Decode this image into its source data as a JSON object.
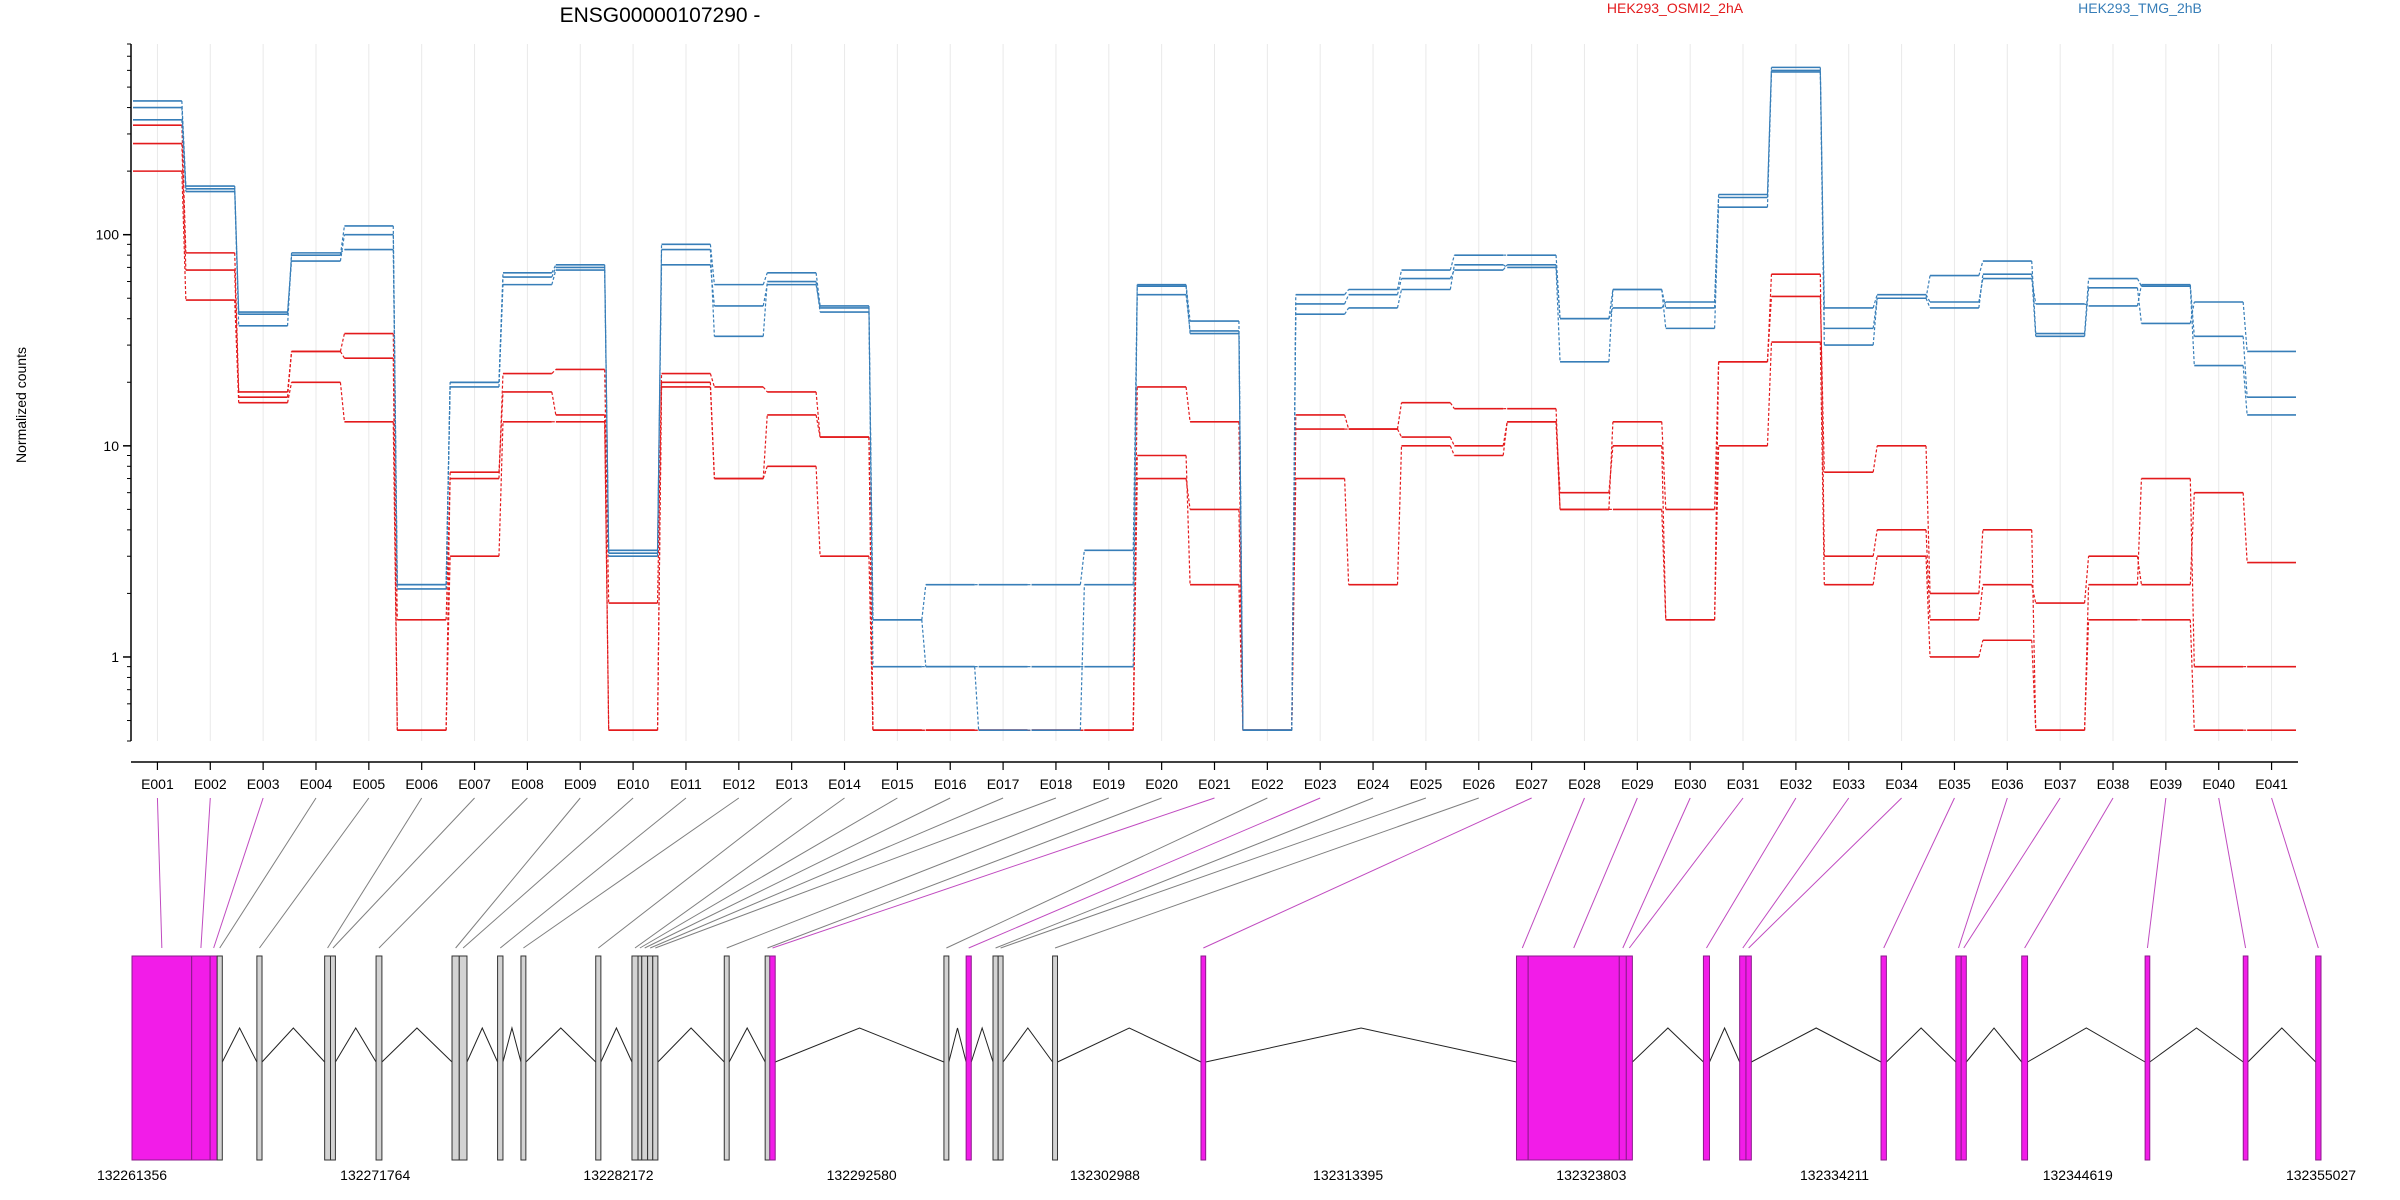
{
  "chart_data": {
    "type": "line",
    "title": "ENSG00000107290 -",
    "ylabel": "Normalized counts",
    "ylim": [
      0.4,
      800
    ],
    "yscale": "log",
    "yticks": [
      {
        "value": 1,
        "label": "1"
      },
      {
        "value": 10,
        "label": "10"
      },
      {
        "value": 100,
        "label": "100"
      }
    ],
    "categories": [
      "E001",
      "E002",
      "E003",
      "E004",
      "E005",
      "E006",
      "E007",
      "E008",
      "E009",
      "E010",
      "E011",
      "E012",
      "E013",
      "E014",
      "E015",
      "E016",
      "E017",
      "E018",
      "E019",
      "E020",
      "E021",
      "E022",
      "E023",
      "E024",
      "E025",
      "E026",
      "E027",
      "E028",
      "E029",
      "E030",
      "E031",
      "E032",
      "E033",
      "E034",
      "E035",
      "E036",
      "E037",
      "E038",
      "E039",
      "E040",
      "E041"
    ],
    "legend": [
      {
        "label": "HEK293_OSMI2_2hA",
        "color": "#e31a1c"
      },
      {
        "label": "HEK293_TMG_2hB",
        "color": "#377eb8"
      }
    ],
    "series": [
      {
        "group": 0,
        "color": "#e31a1c",
        "values": [
          270,
          68,
          17,
          28,
          26,
          0.45,
          7.5,
          18,
          14,
          0.45,
          20,
          7,
          14,
          11,
          0.45,
          0.45,
          0.45,
          0.45,
          0.45,
          7,
          5,
          0.45,
          12,
          12,
          11,
          10,
          13,
          6,
          10,
          1.5,
          25,
          51,
          7.5,
          10,
          2,
          4,
          0.45,
          2.2,
          7,
          0.9,
          0.9
        ]
      },
      {
        "group": 0,
        "color": "#e31a1c",
        "values": [
          330,
          82,
          18,
          28,
          34,
          1.5,
          7,
          22,
          23,
          1.8,
          22,
          19,
          18,
          11,
          0.45,
          0.45,
          0.45,
          0.45,
          0.45,
          19,
          13,
          0.45,
          14,
          12,
          16,
          15,
          15,
          5,
          13,
          5,
          25,
          65,
          3,
          4,
          1.5,
          2.2,
          1.8,
          3,
          2.2,
          6,
          2.8
        ]
      },
      {
        "group": 0,
        "color": "#e31a1c",
        "values": [
          200,
          49,
          16,
          20,
          13,
          0.45,
          3,
          13,
          13,
          0.45,
          19,
          7,
          8,
          3,
          0.45,
          0.45,
          0.45,
          0.45,
          0.45,
          9,
          2.2,
          0.45,
          7,
          2.2,
          10,
          9,
          13,
          5,
          5,
          1.5,
          10,
          31,
          2.2,
          3,
          1,
          1.2,
          0.45,
          1.5,
          1.5,
          0.45,
          0.45
        ]
      },
      {
        "group": 1,
        "color": "#377eb8",
        "values": [
          400,
          165,
          43,
          75,
          100,
          2.2,
          20,
          63,
          70,
          3.2,
          72,
          46,
          58,
          45,
          1.5,
          2.2,
          2.2,
          2.2,
          3.2,
          52,
          35,
          0.45,
          47,
          52,
          62,
          68,
          72,
          40,
          55,
          45,
          150,
          600,
          45,
          52,
          48,
          62,
          47,
          46,
          58,
          33,
          17
        ]
      },
      {
        "group": 1,
        "color": "#377eb8",
        "values": [
          430,
          170,
          42,
          80,
          110,
          2.2,
          19,
          58,
          68,
          3,
          85,
          33,
          60,
          43,
          1.5,
          0.9,
          0.9,
          0.9,
          0.9,
          58,
          39,
          0.45,
          52,
          55,
          68,
          80,
          80,
          40,
          45,
          48,
          155,
          620,
          36,
          50,
          45,
          65,
          33,
          56,
          38,
          48,
          28
        ]
      },
      {
        "group": 1,
        "color": "#377eb8",
        "values": [
          350,
          160,
          37,
          82,
          85,
          2.1,
          20,
          66,
          72,
          3.1,
          90,
          58,
          66,
          46,
          0.9,
          0.9,
          0.45,
          0.45,
          2.2,
          57,
          34,
          0.45,
          42,
          45,
          55,
          72,
          70,
          25,
          55,
          36,
          135,
          590,
          30,
          50,
          64,
          75,
          34,
          62,
          57,
          24,
          14
        ]
      }
    ]
  },
  "gene_model": {
    "genomic_ticks": [
      "132261356",
      "132271764",
      "132282172",
      "132292580",
      "132302988",
      "132313395",
      "132323803",
      "132334211",
      "132344619",
      "132355027"
    ],
    "range": [
      132261356,
      132355027
    ],
    "colors": {
      "exon_fill": "#f21ce8",
      "exon_edge": "#8b1a8b",
      "plain_exon_fill": "#d3d3d3",
      "plain_link": "#7f7f7f",
      "hit_link": "#c04bc0"
    },
    "exon_bins": [
      {
        "id": "E001",
        "start": 132261356,
        "end": 132263910,
        "sig": true
      },
      {
        "id": "E002",
        "start": 132263910,
        "end": 132264700,
        "sig": true
      },
      {
        "id": "E003",
        "start": 132264700,
        "end": 132265000,
        "sig": true
      },
      {
        "id": "E004",
        "start": 132265000,
        "end": 132265220,
        "sig": false
      },
      {
        "id": "E005",
        "start": 132266700,
        "end": 132266920,
        "sig": false
      },
      {
        "id": "E006",
        "start": 132269600,
        "end": 132269850,
        "sig": false
      },
      {
        "id": "E007",
        "start": 132269850,
        "end": 132270060,
        "sig": false
      },
      {
        "id": "E008",
        "start": 132271800,
        "end": 132272050,
        "sig": false
      },
      {
        "id": "E009",
        "start": 132275050,
        "end": 132275360,
        "sig": false
      },
      {
        "id": "E010",
        "start": 132275360,
        "end": 132275690,
        "sig": false
      },
      {
        "id": "E011",
        "start": 132277000,
        "end": 132277230,
        "sig": false
      },
      {
        "id": "E012",
        "start": 132278000,
        "end": 132278210,
        "sig": false
      },
      {
        "id": "E013",
        "start": 132281200,
        "end": 132281420,
        "sig": false
      },
      {
        "id": "E014",
        "start": 132282750,
        "end": 132283010,
        "sig": false
      },
      {
        "id": "E015",
        "start": 132283010,
        "end": 132283170,
        "sig": false
      },
      {
        "id": "E016",
        "start": 132283170,
        "end": 132283420,
        "sig": false
      },
      {
        "id": "E017",
        "start": 132283420,
        "end": 132283640,
        "sig": false
      },
      {
        "id": "E018",
        "start": 132283640,
        "end": 132283860,
        "sig": false
      },
      {
        "id": "E019",
        "start": 132286700,
        "end": 132286910,
        "sig": false
      },
      {
        "id": "E020",
        "start": 132288450,
        "end": 132288650,
        "sig": false
      },
      {
        "id": "E021",
        "start": 132288650,
        "end": 132288880,
        "sig": true
      },
      {
        "id": "E022",
        "start": 132296100,
        "end": 132296310,
        "sig": false
      },
      {
        "id": "E023",
        "start": 132297050,
        "end": 132297270,
        "sig": true
      },
      {
        "id": "E024",
        "start": 132298200,
        "end": 132298420,
        "sig": false
      },
      {
        "id": "E025",
        "start": 132298420,
        "end": 132298630,
        "sig": false
      },
      {
        "id": "E026",
        "start": 132300750,
        "end": 132300960,
        "sig": false
      },
      {
        "id": "E027",
        "start": 132307100,
        "end": 132307300,
        "sig": true
      },
      {
        "id": "E028",
        "start": 132320600,
        "end": 132321100,
        "sig": true
      },
      {
        "id": "E029",
        "start": 132321100,
        "end": 132325000,
        "sig": true
      },
      {
        "id": "E030",
        "start": 132325000,
        "end": 132325300,
        "sig": true
      },
      {
        "id": "E031",
        "start": 132325300,
        "end": 132325560,
        "sig": true
      },
      {
        "id": "E032",
        "start": 132328600,
        "end": 132328860,
        "sig": true
      },
      {
        "id": "E033",
        "start": 132330150,
        "end": 132330420,
        "sig": true
      },
      {
        "id": "E034",
        "start": 132330420,
        "end": 132330650,
        "sig": true
      },
      {
        "id": "E035",
        "start": 132336200,
        "end": 132336430,
        "sig": true
      },
      {
        "id": "E036",
        "start": 132339400,
        "end": 132339630,
        "sig": true
      },
      {
        "id": "E037",
        "start": 132339630,
        "end": 132339850,
        "sig": true
      },
      {
        "id": "E038",
        "start": 132342220,
        "end": 132342470,
        "sig": true
      },
      {
        "id": "E039",
        "start": 132347500,
        "end": 132347700,
        "sig": true
      },
      {
        "id": "E040",
        "start": 132351700,
        "end": 132351900,
        "sig": true
      },
      {
        "id": "E041",
        "start": 132354800,
        "end": 132355027,
        "sig": true
      }
    ],
    "transcript_exons": [
      [
        132261356,
        132265220
      ],
      [
        132266700,
        132266920
      ],
      [
        132269600,
        132270060
      ],
      [
        132271800,
        132272050
      ],
      [
        132275050,
        132275690
      ],
      [
        132277000,
        132277230
      ],
      [
        132278000,
        132278210
      ],
      [
        132281200,
        132281420
      ],
      [
        132282750,
        132283860
      ],
      [
        132286700,
        132286910
      ],
      [
        132288450,
        132288880
      ],
      [
        132296100,
        132296310
      ],
      [
        132297050,
        132297270
      ],
      [
        132298200,
        132298630
      ],
      [
        132300750,
        132300960
      ],
      [
        132307100,
        132307300
      ],
      [
        132320600,
        132325560
      ],
      [
        132328600,
        132328860
      ],
      [
        132330150,
        132330650
      ],
      [
        132336200,
        132336430
      ],
      [
        132339400,
        132339850
      ],
      [
        132342220,
        132342470
      ],
      [
        132347500,
        132347700
      ],
      [
        132351700,
        132351900
      ],
      [
        132354800,
        132355027
      ]
    ]
  }
}
